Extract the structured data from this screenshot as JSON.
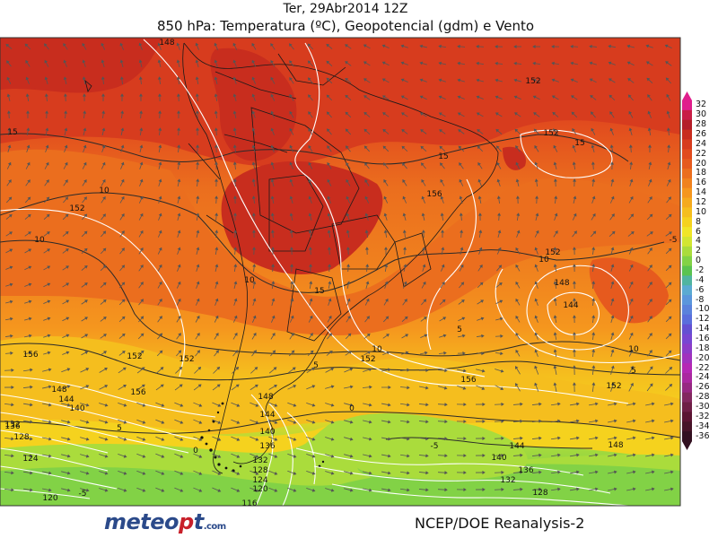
{
  "title": {
    "line1": "Ter, 29Abr2014 12Z",
    "line2": "850 hPa: Temperatura (ºC), Geopotencial (gdm) e Vento"
  },
  "footer": {
    "logo_prefix": "meteo",
    "logo_dot": "p",
    "logo_suffix": "t",
    "logo_domain": ".com",
    "credit": "NCEP/DOE Reanalysis-2"
  },
  "colorbar": {
    "labels": [
      "32",
      "30",
      "28",
      "26",
      "24",
      "22",
      "20",
      "18",
      "16",
      "14",
      "12",
      "10",
      "8",
      "6",
      "4",
      "2",
      "0",
      "-2",
      "-4",
      "-6",
      "-8",
      "-10",
      "-12",
      "-14",
      "-16",
      "-18",
      "-20",
      "-22",
      "-24",
      "-26",
      "-28",
      "-30",
      "-32",
      "-34",
      "-36"
    ],
    "colors": [
      "#e01e8c",
      "#c81e46",
      "#b41e28",
      "#c82d1e",
      "#d73c1e",
      "#e14b1e",
      "#e65a1e",
      "#eb6e1e",
      "#f0821e",
      "#f5961e",
      "#f5aa1e",
      "#f5be1e",
      "#f5d21e",
      "#f0e628",
      "#d2e632",
      "#aadc3c",
      "#82d246",
      "#5ac350",
      "#50b4a0",
      "#5aaad2",
      "#5a96dc",
      "#5a82dc",
      "#5a6edc",
      "#6450d2",
      "#7846d2",
      "#8c3cc8",
      "#a032be",
      "#b428b4",
      "#aa28a0",
      "#962882",
      "#82285f",
      "#6e1e46",
      "#5a1432",
      "#461428",
      "#321020"
    ]
  },
  "isotherm_labels": [
    {
      "text": "15"
    },
    {
      "text": "15"
    },
    {
      "text": "15"
    },
    {
      "text": "15"
    },
    {
      "text": "10"
    },
    {
      "text": "10"
    },
    {
      "text": "10"
    },
    {
      "text": "10"
    },
    {
      "text": "10"
    },
    {
      "text": "10"
    },
    {
      "text": "5"
    },
    {
      "text": "5"
    },
    {
      "text": "5"
    },
    {
      "text": "5"
    },
    {
      "text": "0"
    },
    {
      "text": "0"
    },
    {
      "text": "-5"
    },
    {
      "text": "-5"
    },
    {
      "text": "-5"
    }
  ],
  "geopotential_labels": [
    {
      "text": "148"
    },
    {
      "text": "152"
    },
    {
      "text": "152"
    },
    {
      "text": "156"
    },
    {
      "text": "152"
    },
    {
      "text": "152"
    },
    {
      "text": "148"
    },
    {
      "text": "144"
    },
    {
      "text": "156"
    },
    {
      "text": "148"
    },
    {
      "text": "144"
    },
    {
      "text": "140"
    },
    {
      "text": "136"
    },
    {
      "text": "132"
    },
    {
      "text": "128"
    },
    {
      "text": "124"
    },
    {
      "text": "120"
    },
    {
      "text": "152"
    },
    {
      "text": "156"
    },
    {
      "text": "148"
    },
    {
      "text": "144"
    },
    {
      "text": "140"
    },
    {
      "text": "136"
    },
    {
      "text": "132"
    },
    {
      "text": "128"
    },
    {
      "text": "124"
    },
    {
      "text": "120"
    },
    {
      "text": "116"
    },
    {
      "text": "152"
    },
    {
      "text": "148"
    },
    {
      "text": "144"
    },
    {
      "text": "140"
    },
    {
      "text": "136"
    },
    {
      "text": "132"
    },
    {
      "text": "128"
    },
    {
      "text": "152"
    },
    {
      "text": "156"
    },
    {
      "text": "152"
    }
  ]
}
